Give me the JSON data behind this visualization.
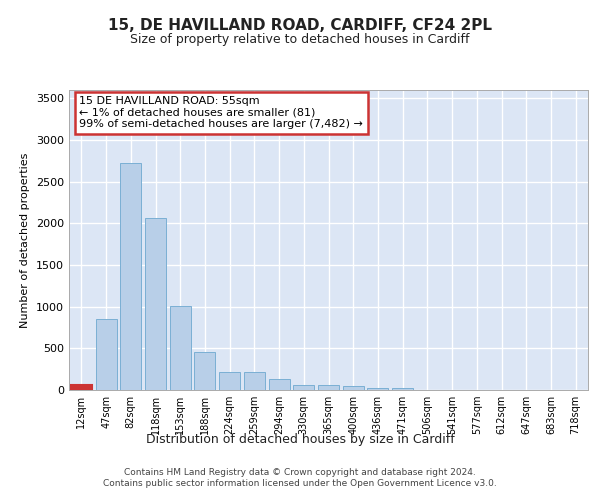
{
  "title": "15, DE HAVILLAND ROAD, CARDIFF, CF24 2PL",
  "subtitle": "Size of property relative to detached houses in Cardiff",
  "xlabel": "Distribution of detached houses by size in Cardiff",
  "ylabel": "Number of detached properties",
  "footer": "Contains HM Land Registry data © Crown copyright and database right 2024.\nContains public sector information licensed under the Open Government Licence v3.0.",
  "bar_labels": [
    "12sqm",
    "47sqm",
    "82sqm",
    "118sqm",
    "153sqm",
    "188sqm",
    "224sqm",
    "259sqm",
    "294sqm",
    "330sqm",
    "365sqm",
    "400sqm",
    "436sqm",
    "471sqm",
    "506sqm",
    "541sqm",
    "577sqm",
    "612sqm",
    "647sqm",
    "683sqm",
    "718sqm"
  ],
  "bar_values": [
    55,
    850,
    2720,
    2060,
    1005,
    455,
    215,
    215,
    130,
    65,
    55,
    50,
    30,
    25,
    0,
    0,
    0,
    0,
    0,
    0,
    0
  ],
  "bar_color": "#b8cfe8",
  "bar_edge_color": "#7aafd4",
  "highlight_bar_color": "#cc3333",
  "ylim": [
    0,
    3600
  ],
  "yticks": [
    0,
    500,
    1000,
    1500,
    2000,
    2500,
    3000,
    3500
  ],
  "annotation_text": "15 DE HAVILLAND ROAD: 55sqm\n← 1% of detached houses are smaller (81)\n99% of semi-detached houses are larger (7,482) →",
  "bg_color": "#dce6f5",
  "grid_color": "#ffffff",
  "fig_bg": "#ffffff"
}
